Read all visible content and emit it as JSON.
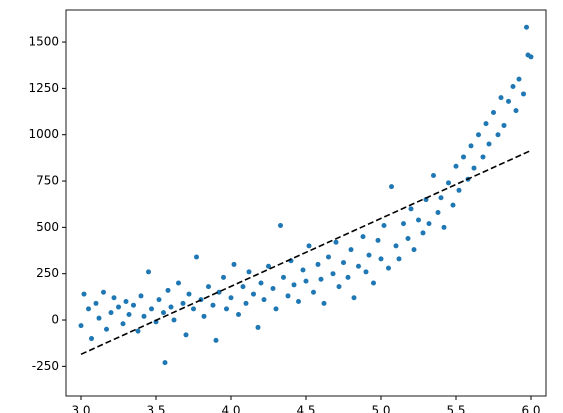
{
  "chart_data": {
    "type": "scatter",
    "xlim": [
      2.9,
      6.1
    ],
    "ylim": [
      -410,
      1673
    ],
    "xticks": [
      {
        "value": 3.0,
        "label": "3.0"
      },
      {
        "value": 3.5,
        "label": "3.5"
      },
      {
        "value": 4.0,
        "label": "4.0"
      },
      {
        "value": 4.5,
        "label": "4.5"
      },
      {
        "value": 5.0,
        "label": "5.0"
      },
      {
        "value": 5.5,
        "label": "5.5"
      },
      {
        "value": 6.0,
        "label": "6.0"
      }
    ],
    "yticks": [
      -250,
      0,
      250,
      500,
      750,
      1000,
      1250,
      1500
    ],
    "points": {
      "color": "#1f77b4",
      "x": [
        3.0,
        3.02,
        3.05,
        3.07,
        3.1,
        3.12,
        3.15,
        3.17,
        3.2,
        3.22,
        3.25,
        3.28,
        3.3,
        3.32,
        3.35,
        3.38,
        3.4,
        3.42,
        3.45,
        3.47,
        3.5,
        3.52,
        3.55,
        3.56,
        3.58,
        3.6,
        3.62,
        3.65,
        3.68,
        3.7,
        3.72,
        3.75,
        3.77,
        3.8,
        3.82,
        3.85,
        3.88,
        3.9,
        3.92,
        3.95,
        3.97,
        4.0,
        4.02,
        4.05,
        4.08,
        4.1,
        4.12,
        4.15,
        4.18,
        4.2,
        4.22,
        4.25,
        4.28,
        4.3,
        4.33,
        4.35,
        4.38,
        4.4,
        4.42,
        4.45,
        4.48,
        4.5,
        4.52,
        4.55,
        4.58,
        4.6,
        4.62,
        4.65,
        4.68,
        4.7,
        4.72,
        4.75,
        4.78,
        4.8,
        4.82,
        4.85,
        4.88,
        4.9,
        4.92,
        4.95,
        4.98,
        5.0,
        5.02,
        5.05,
        5.07,
        5.1,
        5.12,
        5.15,
        5.18,
        5.2,
        5.22,
        5.25,
        5.28,
        5.3,
        5.32,
        5.35,
        5.38,
        5.4,
        5.42,
        5.45,
        5.48,
        5.5,
        5.52,
        5.55,
        5.58,
        5.6,
        5.62,
        5.65,
        5.68,
        5.7,
        5.72,
        5.75,
        5.78,
        5.8,
        5.82,
        5.85,
        5.88,
        5.9,
        5.92,
        5.95,
        5.97,
        5.98,
        6.0
      ],
      "y": [
        -30,
        140,
        60,
        -100,
        90,
        10,
        150,
        -50,
        40,
        120,
        70,
        -20,
        100,
        30,
        80,
        -60,
        130,
        20,
        260,
        60,
        -10,
        110,
        40,
        -230,
        160,
        70,
        0,
        200,
        90,
        -80,
        140,
        60,
        340,
        110,
        20,
        180,
        80,
        -110,
        150,
        230,
        60,
        120,
        300,
        30,
        180,
        90,
        260,
        140,
        -40,
        200,
        110,
        290,
        170,
        60,
        510,
        230,
        130,
        320,
        190,
        100,
        270,
        210,
        400,
        150,
        300,
        220,
        90,
        340,
        250,
        420,
        180,
        310,
        230,
        380,
        120,
        290,
        450,
        260,
        350,
        200,
        430,
        330,
        510,
        280,
        720,
        400,
        330,
        520,
        440,
        600,
        380,
        540,
        470,
        650,
        520,
        780,
        580,
        660,
        500,
        740,
        620,
        830,
        700,
        880,
        760,
        940,
        820,
        1000,
        880,
        1060,
        950,
        1120,
        1000,
        1200,
        1050,
        1180,
        1260,
        1130,
        1300,
        1220,
        1580,
        1430,
        1420
      ]
    },
    "fit_line": {
      "color": "#000000",
      "dashed": true,
      "x": [
        3.0,
        6.0
      ],
      "y": [
        -185,
        915
      ]
    }
  }
}
